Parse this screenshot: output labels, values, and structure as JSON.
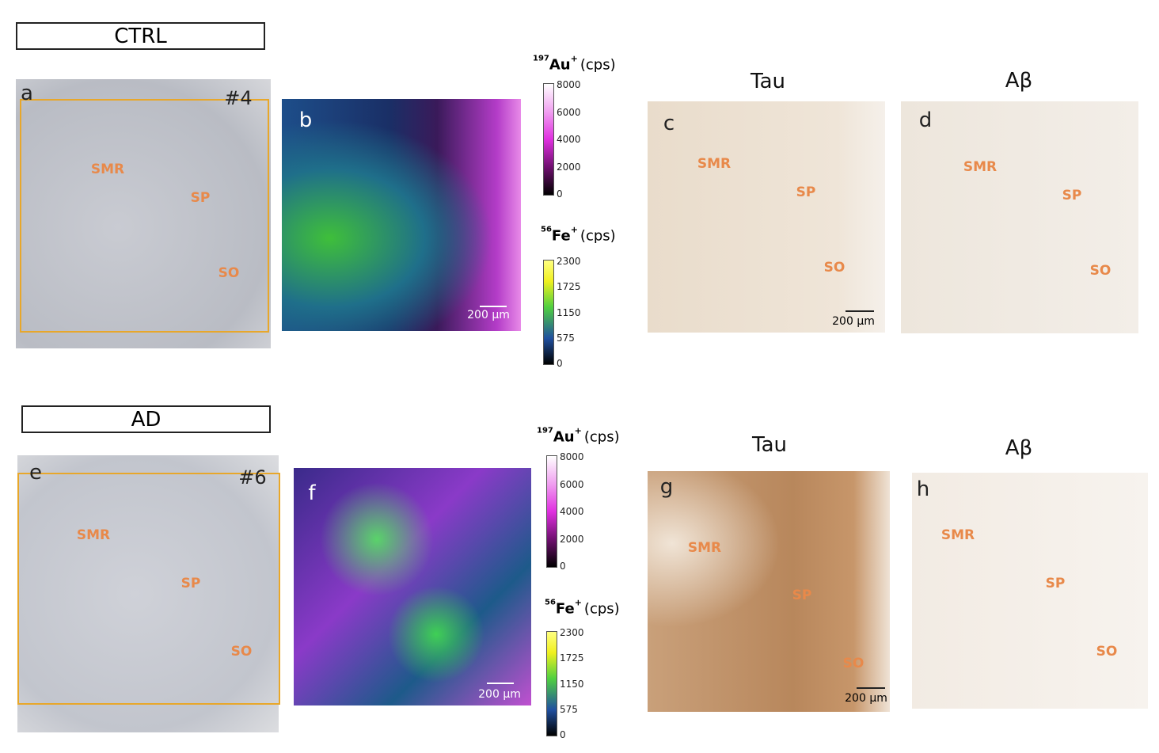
{
  "rows": [
    {
      "label": "CTRL",
      "optical": {
        "letter": "a",
        "sample": "#4",
        "regions": [
          "SMR",
          "SP",
          "SO"
        ]
      },
      "map": {
        "letter": "b",
        "scale_bar": "200 µm"
      },
      "au_scale": {
        "isotope": "197",
        "element": "Au",
        "charge": "+",
        "unit": "(cps)",
        "ticks": [
          8000,
          6000,
          4000,
          2000,
          0
        ]
      },
      "fe_scale": {
        "isotope": "56",
        "element": "Fe",
        "charge": "+",
        "unit": "(cps)",
        "ticks": [
          2300,
          1725,
          1150,
          575,
          0
        ]
      },
      "tau": {
        "title": "Tau",
        "letter": "c",
        "regions": [
          "SMR",
          "SP",
          "SO"
        ],
        "scale_bar": "200 µm"
      },
      "abeta": {
        "title": "Aβ",
        "letter": "d",
        "regions": [
          "SMR",
          "SP",
          "SO"
        ]
      }
    },
    {
      "label": "AD",
      "optical": {
        "letter": "e",
        "sample": "#6",
        "regions": [
          "SMR",
          "SP",
          "SO"
        ]
      },
      "map": {
        "letter": "f",
        "scale_bar": "200 µm"
      },
      "au_scale": {
        "isotope": "197",
        "element": "Au",
        "charge": "+",
        "unit": "(cps)",
        "ticks": [
          8000,
          6000,
          4000,
          2000,
          0
        ]
      },
      "fe_scale": {
        "isotope": "56",
        "element": "Fe",
        "charge": "+",
        "unit": "(cps)",
        "ticks": [
          2300,
          1725,
          1150,
          575,
          0
        ]
      },
      "tau": {
        "title": "Tau",
        "letter": "g",
        "regions": [
          "SMR",
          "SP",
          "SO"
        ],
        "scale_bar": "200 µm"
      },
      "abeta": {
        "title": "Aβ",
        "letter": "h",
        "regions": [
          "SMR",
          "SP",
          "SO"
        ]
      }
    }
  ]
}
